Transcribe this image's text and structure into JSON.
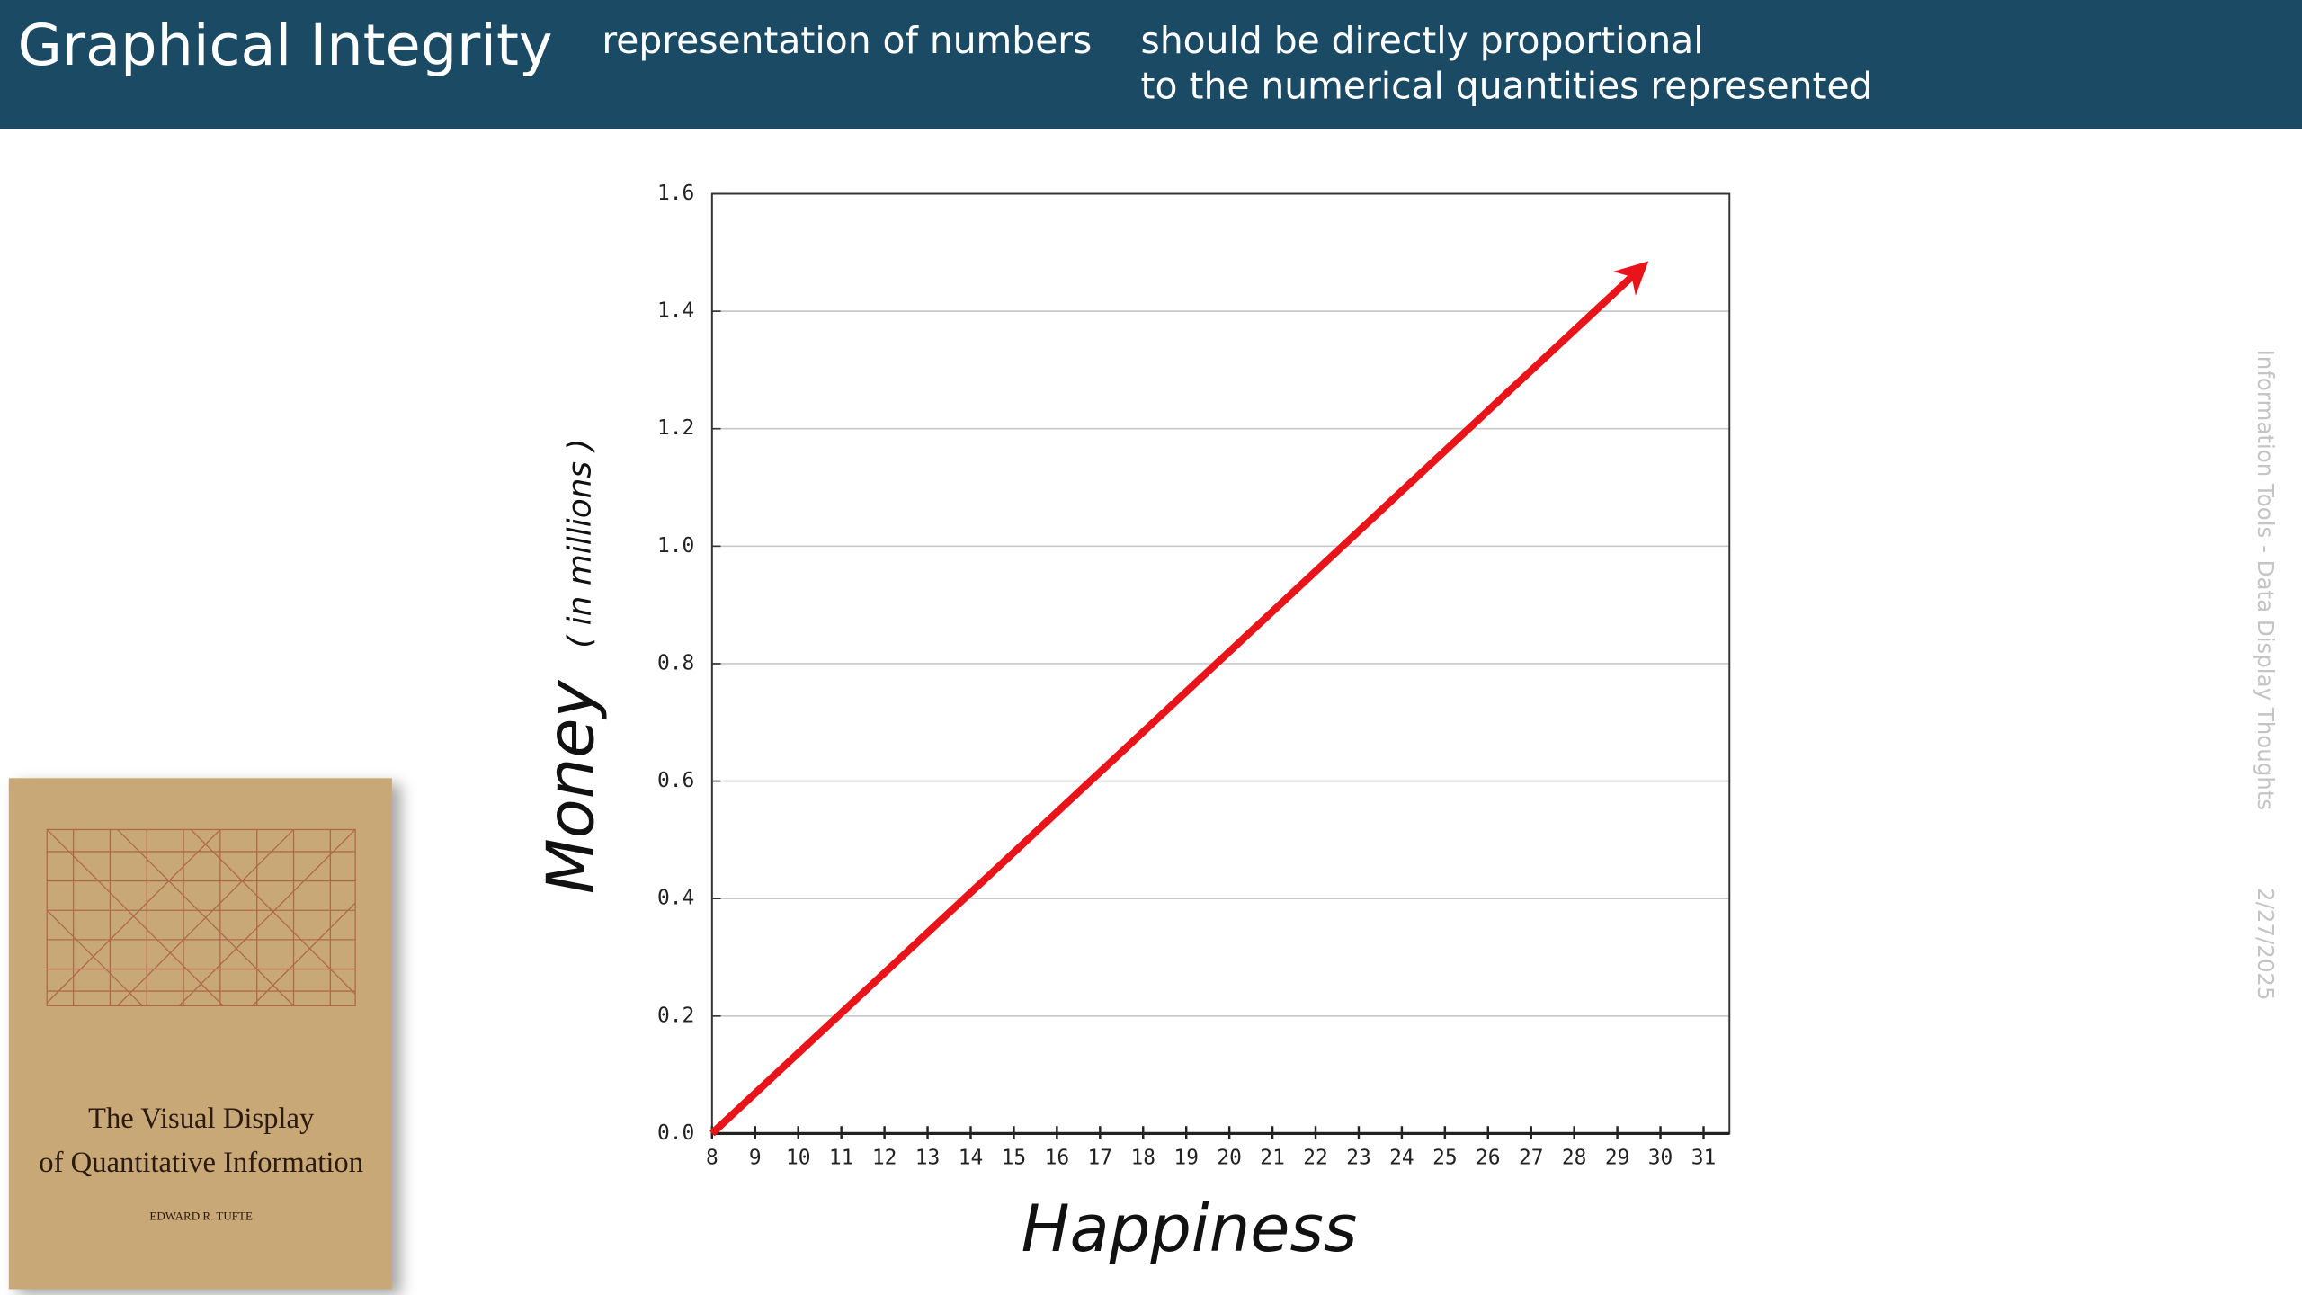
{
  "header": {
    "title": "Graphical Integrity",
    "subtitle": "representation of numbers",
    "note_lines": [
      "should be directly proportional",
      "to the numerical quantities represented"
    ]
  },
  "chart_data": {
    "type": "line",
    "y_label": "Money",
    "y_label_unit": "( in millions )",
    "x_label": "Happiness",
    "x": [
      8,
      29.5
    ],
    "series": [
      {
        "color": "#e8141a",
        "values": [
          0,
          1.47
        ]
      }
    ],
    "xlim": [
      8,
      31.6
    ],
    "ylim": [
      0,
      1.6
    ],
    "xticks": [
      8,
      9,
      10,
      11,
      12,
      13,
      14,
      15,
      16,
      17,
      18,
      19,
      20,
      21,
      22,
      23,
      24,
      25,
      26,
      27,
      28,
      29,
      30,
      31
    ],
    "yticks": [
      {
        "value": 0,
        "label": "0.0"
      },
      0.2,
      0.4,
      0.6,
      0.8,
      {
        "value": 1,
        "label": "1.0"
      },
      1.2,
      1.4,
      1.6
    ],
    "grid": true
  },
  "book": {
    "title_lines": [
      "The Visual Display",
      "of Quantitative Information"
    ],
    "author": "EDWARD R. TUFTE"
  },
  "footer": {
    "deck": "Information Tools - Data Display Thoughts",
    "date": "2/27/2025"
  }
}
